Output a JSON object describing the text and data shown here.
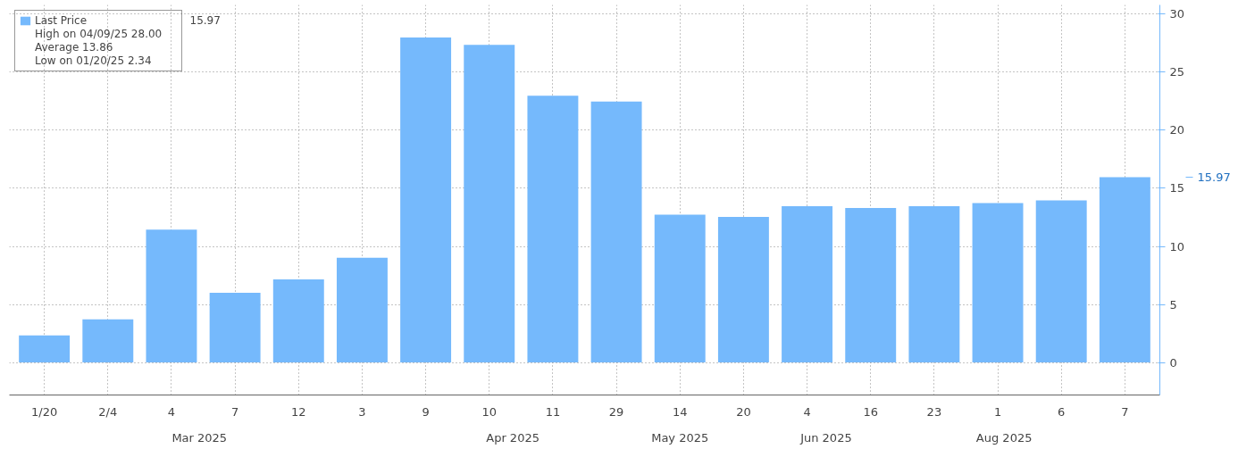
{
  "chart_data": {
    "type": "bar",
    "categories": [
      "1/20",
      "2/4",
      "4",
      "7",
      "12",
      "3",
      "9",
      "10",
      "11",
      "29",
      "14",
      "20",
      "4",
      "16",
      "23",
      "1",
      "6",
      "7"
    ],
    "series": [
      {
        "name": "Last Price",
        "color": "#75b9fc",
        "values": [
          2.34,
          3.72,
          11.45,
          6.0,
          7.16,
          9.02,
          28.0,
          27.35,
          22.98,
          22.48,
          12.74,
          12.53,
          13.46,
          13.31,
          13.46,
          13.74,
          13.96,
          15.97
        ]
      }
    ],
    "ylim": [
      -2.8,
      30.8
    ],
    "yticks": [
      0,
      5,
      10,
      15,
      20,
      25,
      30
    ],
    "grid": true,
    "legend": "top left",
    "annotations": [
      "15.97",
      "15.97",
      "High on 04/09/25 28.00",
      "Average 13.86",
      "Low on 01/20/25 2.34",
      "Mar 2025",
      "Apr 2025",
      "May 2025",
      "Jun 2025",
      "Aug 2025"
    ]
  }
}
